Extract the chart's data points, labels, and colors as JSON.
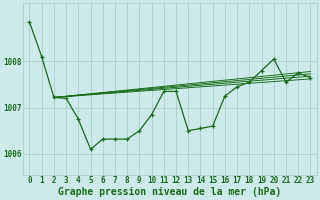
{
  "x": [
    0,
    1,
    2,
    3,
    4,
    5,
    6,
    7,
    8,
    9,
    10,
    11,
    12,
    13,
    14,
    15,
    16,
    17,
    18,
    19,
    20,
    21,
    22,
    23
  ],
  "main_line": [
    1008.85,
    1008.1,
    1007.22,
    1007.2,
    1006.75,
    1006.1,
    1006.32,
    1006.32,
    1006.32,
    1006.5,
    1006.85,
    1007.35,
    1007.35,
    1006.5,
    1006.55,
    1006.6,
    1007.25,
    1007.45,
    1007.55,
    1007.8,
    1008.05,
    1007.55,
    1007.75,
    1007.65
  ],
  "fan_lines": [
    [
      2,
      23,
      1007.22,
      1007.62
    ],
    [
      2,
      23,
      1007.22,
      1007.68
    ],
    [
      2,
      23,
      1007.22,
      1007.73
    ],
    [
      2,
      23,
      1007.22,
      1007.78
    ]
  ],
  "ylim": [
    1005.55,
    1009.25
  ],
  "yticks": [
    1006,
    1007,
    1008
  ],
  "xticks": [
    0,
    1,
    2,
    3,
    4,
    5,
    6,
    7,
    8,
    9,
    10,
    11,
    12,
    13,
    14,
    15,
    16,
    17,
    18,
    19,
    20,
    21,
    22,
    23
  ],
  "xlabel": "Graphe pression niveau de la mer (hPa)",
  "line_color": "#1a6b1a",
  "bg_color": "#cceaea",
  "grid_color": "#aacece",
  "marker": "+",
  "marker_size": 3,
  "line_width": 0.9,
  "tick_fontsize": 5.5,
  "xlabel_fontsize": 7
}
